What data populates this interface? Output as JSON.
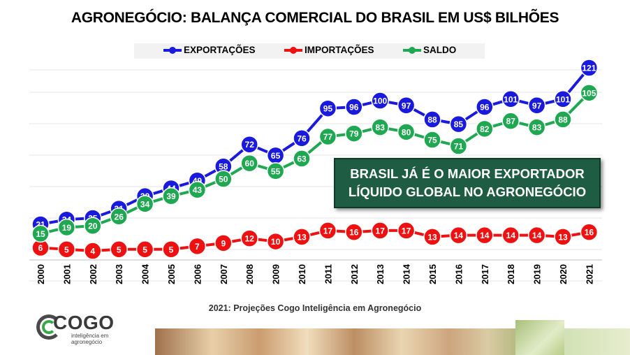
{
  "title": "AGRONEGÓCIO: BALANÇA COMERCIAL DO BRASIL EM US$ BILHÕES",
  "legend": [
    {
      "name": "EXPORTAÇÕES",
      "color": "#1a1adc"
    },
    {
      "name": "IMPORTAÇÕES",
      "color": "#ee1111"
    },
    {
      "name": "SALDO",
      "color": "#1fa851"
    }
  ],
  "callout": {
    "line1": "BRASIL JÁ É O MAIOR EXPORTADOR",
    "line2": "LÍQUIDO GLOBAL NO AGRONEGÓCIO"
  },
  "source": "2021: Projeções Cogo Inteligência em Agronegócio",
  "logo": {
    "name": "COGO",
    "tagline_1": "inteligência em",
    "tagline_2": "agronegócio"
  },
  "chart_data": {
    "type": "line",
    "categories": [
      "2000",
      "2001",
      "2002",
      "2003",
      "2004",
      "2005",
      "2006",
      "2007",
      "2008",
      "2009",
      "2010",
      "2011",
      "2012",
      "2013",
      "2014",
      "2015",
      "2016",
      "2017",
      "2018",
      "2019",
      "2020",
      "2021"
    ],
    "series": [
      {
        "name": "EXPORTAÇÕES",
        "color": "#1a1adc",
        "values": [
          21,
          24,
          25,
          31,
          39,
          44,
          49,
          58,
          72,
          65,
          76,
          95,
          96,
          100,
          97,
          88,
          85,
          96,
          101,
          97,
          101,
          121
        ]
      },
      {
        "name": "IMPORTAÇÕES",
        "color": "#ee1111",
        "values": [
          6,
          5,
          4,
          5,
          5,
          5,
          7,
          9,
          12,
          10,
          13,
          17,
          16,
          17,
          17,
          13,
          14,
          14,
          14,
          14,
          13,
          16
        ]
      },
      {
        "name": "SALDO",
        "color": "#1fa851",
        "values": [
          15,
          19,
          20,
          26,
          34,
          39,
          43,
          50,
          60,
          55,
          63,
          77,
          79,
          83,
          80,
          75,
          71,
          82,
          87,
          83,
          88,
          105
        ]
      }
    ],
    "ylim": [
      0,
      125
    ],
    "grid": true,
    "legend_position": "top-center"
  }
}
